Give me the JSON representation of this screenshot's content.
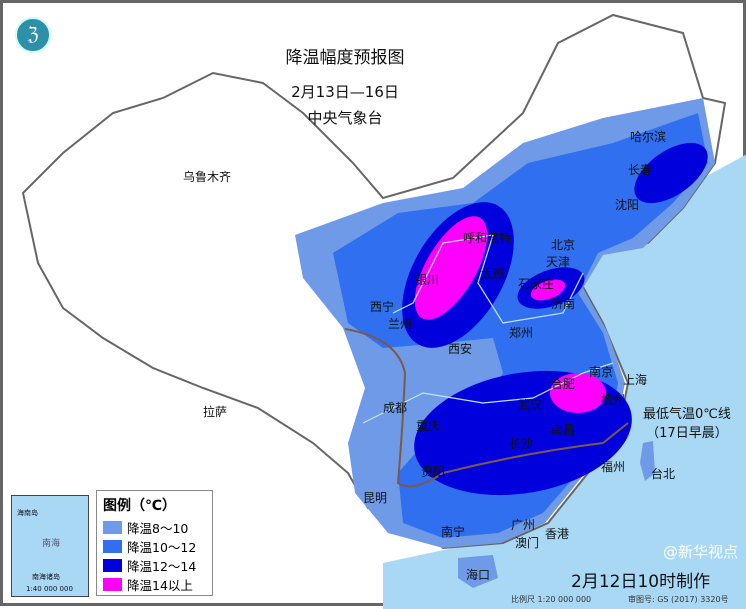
{
  "title": "降温幅度预报图",
  "date_range": "2月13日—16日",
  "issuer": "中央气象台",
  "legend": {
    "title": "图例（℃）",
    "items": [
      {
        "label": "降温8～10",
        "color": "#6f9ae8"
      },
      {
        "label": "降温10～12",
        "color": "#2f6ff0"
      },
      {
        "label": "降温12～14",
        "color": "#0000dd"
      },
      {
        "label": "降温14以上",
        "color": "#ff00ff"
      }
    ]
  },
  "zero_line": {
    "label": "最低气温0℃线",
    "sub": "（17日早晨）",
    "color": "#7a5a4a"
  },
  "cities": [
    "乌鲁木齐",
    "哈尔滨",
    "长春",
    "沈阳",
    "北京",
    "天津",
    "呼和浩特",
    "银川",
    "太原",
    "石家庄",
    "济南",
    "西宁",
    "兰州",
    "郑州",
    "西安",
    "南京",
    "上海",
    "合肥",
    "杭州",
    "武汉",
    "成都",
    "重庆",
    "长沙",
    "南昌",
    "拉萨",
    "贵阳",
    "福州",
    "台北",
    "昆明",
    "南宁",
    "广州",
    "澳门",
    "香港",
    "海口"
  ],
  "inset": {
    "labels": [
      "南海",
      "海南岛",
      "南海诸岛"
    ],
    "scale": "1:40 000 000"
  },
  "footer": {
    "made": "2月12日10时制作",
    "scale": "比例尺 1:20 000 000",
    "map_no": "审图号: GS (2017) 3320号",
    "watermark": "@新华视点"
  },
  "sea_color": "#a9d8f5"
}
